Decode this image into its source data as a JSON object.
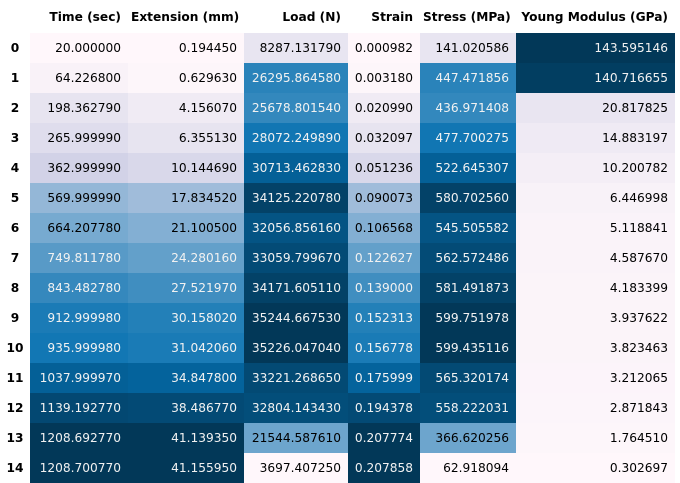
{
  "table": {
    "columns": [
      "Time (sec)",
      "Extension (mm)",
      "Load (N)",
      "Strain",
      "Stress (MPa)",
      "Young Modulus (GPa)"
    ],
    "index_header": "",
    "rows": [
      {
        "index": "0",
        "cells": [
          "20.000000",
          "0.194450",
          "8287.131790",
          "0.000982",
          "141.020586",
          "143.595146"
        ]
      },
      {
        "index": "1",
        "cells": [
          "64.226800",
          "0.629630",
          "26295.864580",
          "0.003180",
          "447.471856",
          "140.716655"
        ]
      },
      {
        "index": "2",
        "cells": [
          "198.362790",
          "4.156070",
          "25678.801540",
          "0.020990",
          "436.971408",
          "20.817825"
        ]
      },
      {
        "index": "3",
        "cells": [
          "265.999990",
          "6.355130",
          "28072.249890",
          "0.032097",
          "477.700275",
          "14.883197"
        ]
      },
      {
        "index": "4",
        "cells": [
          "362.999990",
          "10.144690",
          "30713.462830",
          "0.051236",
          "522.645307",
          "10.200782"
        ]
      },
      {
        "index": "5",
        "cells": [
          "569.999990",
          "17.834520",
          "34125.220780",
          "0.090073",
          "580.702560",
          "6.446998"
        ]
      },
      {
        "index": "6",
        "cells": [
          "664.207780",
          "21.100500",
          "32056.856160",
          "0.106568",
          "545.505582",
          "5.118841"
        ]
      },
      {
        "index": "7",
        "cells": [
          "749.811780",
          "24.280160",
          "33059.799670",
          "0.122627",
          "562.572486",
          "4.587670"
        ]
      },
      {
        "index": "8",
        "cells": [
          "843.482780",
          "27.521970",
          "34171.605110",
          "0.139000",
          "581.491873",
          "4.183399"
        ]
      },
      {
        "index": "9",
        "cells": [
          "912.999980",
          "30.158020",
          "35244.667530",
          "0.152313",
          "599.751978",
          "3.937622"
        ]
      },
      {
        "index": "10",
        "cells": [
          "935.999980",
          "31.042060",
          "35226.047040",
          "0.156778",
          "599.435116",
          "3.823463"
        ]
      },
      {
        "index": "11",
        "cells": [
          "1037.999970",
          "34.847800",
          "33221.268650",
          "0.175999",
          "565.320174",
          "3.212065"
        ]
      },
      {
        "index": "12",
        "cells": [
          "1139.192770",
          "38.486770",
          "32804.143430",
          "0.194378",
          "558.222031",
          "2.871843"
        ]
      },
      {
        "index": "13",
        "cells": [
          "1208.692770",
          "41.139350",
          "21544.587610",
          "0.207774",
          "366.620256",
          "1.764510"
        ]
      },
      {
        "index": "14",
        "cells": [
          "1208.700770",
          "41.155950",
          "3697.407250",
          "0.207858",
          "62.918094",
          "0.302697"
        ]
      }
    ],
    "colormap": {
      "name": "PuBu",
      "low": "#fff7fb",
      "mid1": "#d0d1e6",
      "mid2": "#74a9cf",
      "mid3": "#0570b0",
      "high": "#023858",
      "text_dark": "#000000",
      "text_light": "#f1f1f1"
    }
  }
}
